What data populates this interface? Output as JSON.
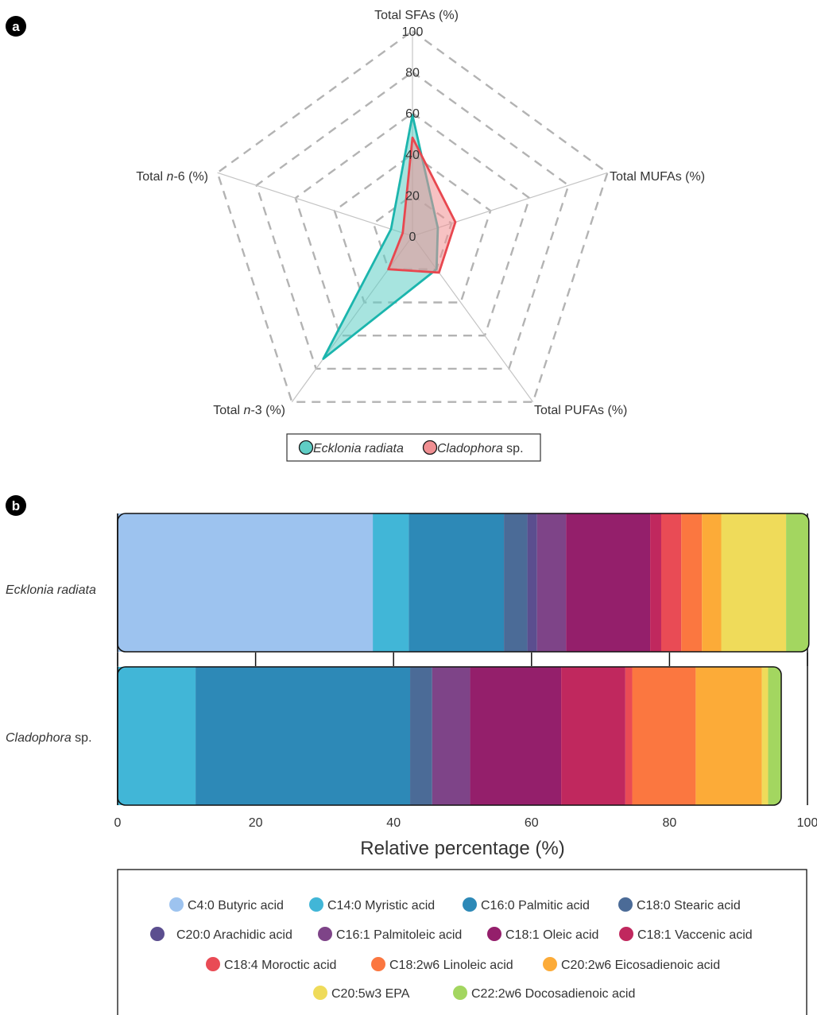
{
  "panels": {
    "a": {
      "badge": "a"
    },
    "b": {
      "badge": "b"
    }
  },
  "chart_data": [
    {
      "panel": "a",
      "type": "radar",
      "axes": [
        "Total SFAs (%)",
        "Total MUFAs (%)",
        "Total PUFAs (%)",
        "Total n-3 (%)",
        "Total n-6 (%)"
      ],
      "axis_label_parts": [
        [
          {
            "t": "Total SFAs (%)",
            "i": false
          }
        ],
        [
          {
            "t": "Total MUFAs (%)",
            "i": false
          }
        ],
        [
          {
            "t": "Total PUFAs (%)",
            "i": false
          }
        ],
        [
          {
            "t": "Total ",
            "i": false
          },
          {
            "t": "n",
            "i": true
          },
          {
            "t": "-3 (%)",
            "i": false
          }
        ],
        [
          {
            "t": "Total ",
            "i": false
          },
          {
            "t": "n",
            "i": true
          },
          {
            "t": "-6 (%)",
            "i": false
          }
        ]
      ],
      "r_ticks": [
        0,
        20,
        40,
        60,
        80,
        100
      ],
      "rlim": [
        0,
        100
      ],
      "grid": "dashed pentagons",
      "series": [
        {
          "name": "Ecklonia radiata",
          "legend_parts": [
            {
              "t": "Ecklonia radiata",
              "i": true
            }
          ],
          "values": [
            59,
            13,
            20,
            74,
            11
          ],
          "color": "#1bb5ad",
          "fill": "#5fcdc5"
        },
        {
          "name": "Cladophora sp.",
          "legend_parts": [
            {
              "t": "Cladophora",
              "i": true
            },
            {
              "t": " sp.",
              "i": false
            }
          ],
          "values": [
            48,
            22,
            22,
            20,
            5
          ],
          "color": "#e8474f",
          "fill": "#f08f92"
        }
      ],
      "legend_position": "bottom-center"
    },
    {
      "panel": "b",
      "type": "stacked-bar-horizontal",
      "categories": [
        "Ecklonia radiata",
        "Cladophora sp."
      ],
      "category_label_parts": [
        [
          {
            "t": "Ecklonia radiata",
            "i": true
          }
        ],
        [
          {
            "t": "Cladophora",
            "i": true
          },
          {
            "t": " sp.",
            "i": false
          }
        ]
      ],
      "xlabel": "Relative percentage (%)",
      "xlim": [
        0,
        100
      ],
      "xticks": [
        0,
        20,
        40,
        60,
        80,
        100
      ],
      "series": [
        {
          "name": "C4:0 Butyric acid",
          "color": "#9dc3ef",
          "values": [
            37.0,
            0
          ]
        },
        {
          "name": "C14:0 Myristic acid",
          "color": "#41b6d7",
          "values": [
            5.2,
            11.3
          ]
        },
        {
          "name": "C16:0 Palmitic acid",
          "color": "#2d89b7",
          "values": [
            13.8,
            31.1
          ]
        },
        {
          "name": "C18:0 Stearic acid",
          "color": "#4b6b97",
          "values": [
            3.4,
            3.2
          ]
        },
        {
          "name": "C20:0 Arachidic acid",
          "color": "#5b4e8f",
          "values": [
            1.4,
            0
          ]
        },
        {
          "name": "C16:1 Palmitoleic acid",
          "color": "#7e4488",
          "values": [
            4.2,
            5.5
          ]
        },
        {
          "name": "C18:1 Oleic acid",
          "color": "#941f6b",
          "values": [
            12.2,
            13.2
          ]
        },
        {
          "name": "C18:1 Vaccenic acid",
          "color": "#c0285e",
          "values": [
            1.6,
            9.3
          ]
        },
        {
          "name": "C18:4 Moroctic acid",
          "color": "#e94b55",
          "values": [
            2.9,
            1.0
          ]
        },
        {
          "name": "C18:2w6 Linoleic acid",
          "color": "#fb7740",
          "values": [
            3.0,
            9.2
          ]
        },
        {
          "name": "C20:2w6 Eicosadienoic acid",
          "color": "#fcab38",
          "values": [
            2.8,
            9.6
          ]
        },
        {
          "name": "C20:5w3 EPA",
          "color": "#efdb5a",
          "values": [
            9.4,
            0.9
          ]
        },
        {
          "name": "C22:2w6 Docosadienoic acid",
          "color": "#a3d660",
          "values": [
            3.3,
            1.9
          ]
        }
      ],
      "legend_position": "bottom"
    }
  ]
}
